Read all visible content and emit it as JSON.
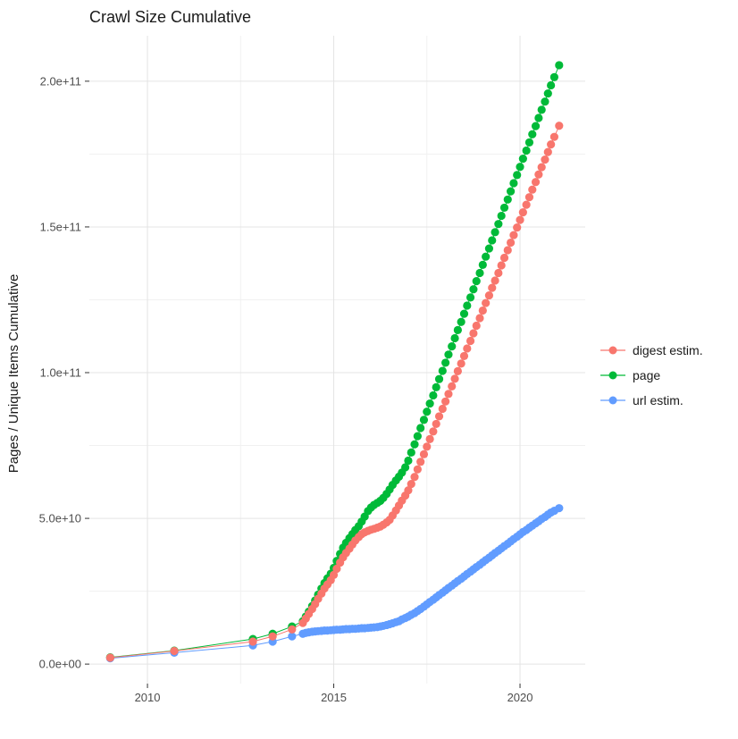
{
  "colors": {
    "digest": "#F8766D",
    "page": "#00BA38",
    "url": "#619CFF",
    "grid_major": "#e4e4e4",
    "grid_minor": "#f1f1f1",
    "axis_text": "#4d4d4d",
    "tick_mark": "#333333",
    "text": "#1a1a1a",
    "background": "#ffffff"
  },
  "legend": {
    "position": "right",
    "items": [
      {
        "label": "digest estim.",
        "color": "#F8766D"
      },
      {
        "label": "page",
        "color": "#00BA38"
      },
      {
        "label": "url estim.",
        "color": "#619CFF"
      }
    ]
  },
  "chart_data": {
    "type": "scatter",
    "title": "Crawl Size Cumulative",
    "xlabel": "",
    "ylabel": "Pages / Unique Items Cumulative",
    "values_unit": "1e9 items (billions)",
    "grid": true,
    "legend_position": "right",
    "xlim": [
      2008.44,
      2021.75
    ],
    "ylim_billions": [
      -6.7,
      215.6
    ],
    "x_tick_labels": [
      "2010",
      "2015",
      "2020"
    ],
    "x_tick_values": [
      2010,
      2015,
      2020
    ],
    "x_minor_ticks": [
      2012.5,
      2017.5
    ],
    "y_tick_labels": [
      "0.0e+00",
      "5.0e+10",
      "1.0e+11",
      "1.5e+11",
      "2.0e+11"
    ],
    "y_tick_values": [
      0,
      50,
      100,
      150,
      200
    ],
    "y_minor_ticks": [
      25,
      75,
      125,
      175
    ],
    "series": [
      {
        "name": "url estim.",
        "color": "#619CFF",
        "points": [
          [
            2009,
            2
          ],
          [
            2010.72,
            3.9
          ],
          [
            2012.83,
            6.4
          ],
          [
            2013.36,
            7.7
          ],
          [
            2013.88,
            9.5
          ],
          [
            2014.17,
            10.4
          ],
          [
            2014.25,
            10.7
          ],
          [
            2014.33,
            10.9
          ],
          [
            2014.42,
            11.1
          ],
          [
            2014.5,
            11.2
          ],
          [
            2014.58,
            11.3
          ],
          [
            2014.67,
            11.4
          ],
          [
            2014.75,
            11.5
          ],
          [
            2014.83,
            11.5
          ],
          [
            2014.92,
            11.6
          ],
          [
            2015,
            11.7
          ],
          [
            2015.08,
            11.8
          ],
          [
            2015.17,
            11.8
          ],
          [
            2015.25,
            11.9
          ],
          [
            2015.33,
            12
          ],
          [
            2015.42,
            12
          ],
          [
            2015.5,
            12.1
          ],
          [
            2015.58,
            12.1
          ],
          [
            2015.67,
            12.2
          ],
          [
            2015.75,
            12.3
          ],
          [
            2015.83,
            12.3
          ],
          [
            2015.92,
            12.4
          ],
          [
            2016,
            12.5
          ],
          [
            2016.08,
            12.6
          ],
          [
            2016.17,
            12.7
          ],
          [
            2016.25,
            12.9
          ],
          [
            2016.33,
            13.1
          ],
          [
            2016.42,
            13.4
          ],
          [
            2016.5,
            13.7
          ],
          [
            2016.58,
            14
          ],
          [
            2016.67,
            14.4
          ],
          [
            2016.75,
            14.7
          ],
          [
            2016.83,
            15.3
          ],
          [
            2016.92,
            15.8
          ],
          [
            2017,
            16.3
          ],
          [
            2017.08,
            16.9
          ],
          [
            2017.17,
            17.5
          ],
          [
            2017.25,
            18.2
          ],
          [
            2017.33,
            18.9
          ],
          [
            2017.42,
            19.7
          ],
          [
            2017.5,
            20.5
          ],
          [
            2017.58,
            21.3
          ],
          [
            2017.67,
            22.1
          ],
          [
            2017.75,
            22.9
          ],
          [
            2017.83,
            23.7
          ],
          [
            2017.92,
            24.5
          ],
          [
            2018,
            25.3
          ],
          [
            2018.08,
            26.1
          ],
          [
            2018.17,
            26.9
          ],
          [
            2018.25,
            27.7
          ],
          [
            2018.33,
            28.5
          ],
          [
            2018.42,
            29.3
          ],
          [
            2018.5,
            30.1
          ],
          [
            2018.58,
            30.9
          ],
          [
            2018.67,
            31.7
          ],
          [
            2018.75,
            32.5
          ],
          [
            2018.83,
            33.3
          ],
          [
            2018.92,
            34.1
          ],
          [
            2019,
            34.9
          ],
          [
            2019.08,
            35.7
          ],
          [
            2019.17,
            36.5
          ],
          [
            2019.25,
            37.3
          ],
          [
            2019.33,
            38.1
          ],
          [
            2019.42,
            38.9
          ],
          [
            2019.5,
            39.7
          ],
          [
            2019.58,
            40.5
          ],
          [
            2019.67,
            41.3
          ],
          [
            2019.75,
            42.1
          ],
          [
            2019.83,
            42.9
          ],
          [
            2019.92,
            43.7
          ],
          [
            2020,
            44.5
          ],
          [
            2020.08,
            45.3
          ],
          [
            2020.17,
            46
          ],
          [
            2020.25,
            46.8
          ],
          [
            2020.33,
            47.5
          ],
          [
            2020.42,
            48.3
          ],
          [
            2020.5,
            49
          ],
          [
            2020.58,
            49.8
          ],
          [
            2020.67,
            50.5
          ],
          [
            2020.75,
            51.3
          ],
          [
            2020.83,
            52
          ],
          [
            2020.92,
            52.6
          ],
          [
            2021.05,
            53.5
          ]
        ]
      },
      {
        "name": "page",
        "color": "#00BA38",
        "points": [
          [
            2009,
            2.3
          ],
          [
            2010.72,
            4.6
          ],
          [
            2012.83,
            8.6
          ],
          [
            2013.36,
            10.4
          ],
          [
            2013.88,
            12.9
          ],
          [
            2014.17,
            14.7
          ],
          [
            2014.25,
            16.3
          ],
          [
            2014.33,
            18
          ],
          [
            2014.42,
            19.9
          ],
          [
            2014.5,
            21.8
          ],
          [
            2014.58,
            23.8
          ],
          [
            2014.67,
            25.9
          ],
          [
            2014.75,
            27.8
          ],
          [
            2014.83,
            29.4
          ],
          [
            2014.92,
            31
          ],
          [
            2015,
            33
          ],
          [
            2015.08,
            35.4
          ],
          [
            2015.17,
            37.8
          ],
          [
            2015.25,
            39.9
          ],
          [
            2015.33,
            41.6
          ],
          [
            2015.42,
            43.2
          ],
          [
            2015.5,
            44.6
          ],
          [
            2015.58,
            46
          ],
          [
            2015.67,
            47.3
          ],
          [
            2015.75,
            48.9
          ],
          [
            2015.83,
            50.6
          ],
          [
            2015.92,
            52.5
          ],
          [
            2016,
            53.7
          ],
          [
            2016.08,
            54.6
          ],
          [
            2016.17,
            55.3
          ],
          [
            2016.25,
            56
          ],
          [
            2016.33,
            57
          ],
          [
            2016.42,
            58.4
          ],
          [
            2016.5,
            59.9
          ],
          [
            2016.58,
            61.5
          ],
          [
            2016.67,
            63
          ],
          [
            2016.75,
            64.3
          ],
          [
            2016.83,
            65.7
          ],
          [
            2016.92,
            67.5
          ],
          [
            2017,
            69.8
          ],
          [
            2017.08,
            72.6
          ],
          [
            2017.17,
            75.4
          ],
          [
            2017.25,
            78.2
          ],
          [
            2017.33,
            81
          ],
          [
            2017.42,
            83.8
          ],
          [
            2017.5,
            86.6
          ],
          [
            2017.58,
            89.4
          ],
          [
            2017.67,
            92.2
          ],
          [
            2017.75,
            95
          ],
          [
            2017.83,
            97.8
          ],
          [
            2017.92,
            100.6
          ],
          [
            2018,
            103.4
          ],
          [
            2018.08,
            106.2
          ],
          [
            2018.17,
            109
          ],
          [
            2018.25,
            111.8
          ],
          [
            2018.33,
            114.6
          ],
          [
            2018.42,
            117.4
          ],
          [
            2018.5,
            120.2
          ],
          [
            2018.58,
            123
          ],
          [
            2018.67,
            125.8
          ],
          [
            2018.75,
            128.6
          ],
          [
            2018.83,
            131.4
          ],
          [
            2018.92,
            134.2
          ],
          [
            2019,
            137
          ],
          [
            2019.08,
            139.8
          ],
          [
            2019.17,
            142.6
          ],
          [
            2019.25,
            145.4
          ],
          [
            2019.33,
            148.2
          ],
          [
            2019.42,
            151
          ],
          [
            2019.5,
            153.8
          ],
          [
            2019.58,
            156.6
          ],
          [
            2019.67,
            159.4
          ],
          [
            2019.75,
            162.2
          ],
          [
            2019.83,
            165
          ],
          [
            2019.92,
            167.8
          ],
          [
            2020,
            170.6
          ],
          [
            2020.08,
            173.4
          ],
          [
            2020.17,
            176.2
          ],
          [
            2020.25,
            179
          ],
          [
            2020.33,
            181.8
          ],
          [
            2020.42,
            184.6
          ],
          [
            2020.5,
            187.4
          ],
          [
            2020.58,
            190.2
          ],
          [
            2020.67,
            193
          ],
          [
            2020.75,
            195.8
          ],
          [
            2020.83,
            198.6
          ],
          [
            2020.92,
            201.4
          ],
          [
            2021.05,
            205.5
          ]
        ]
      },
      {
        "name": "digest estim.",
        "color": "#F8766D",
        "points": [
          [
            2009,
            2.2
          ],
          [
            2010.72,
            4.5
          ],
          [
            2012.83,
            7.7
          ],
          [
            2013.36,
            9.5
          ],
          [
            2013.88,
            11.9
          ],
          [
            2014.17,
            14.1
          ],
          [
            2014.25,
            15.6
          ],
          [
            2014.33,
            17.2
          ],
          [
            2014.42,
            18.9
          ],
          [
            2014.5,
            20.6
          ],
          [
            2014.58,
            22.4
          ],
          [
            2014.67,
            24.2
          ],
          [
            2014.75,
            25.9
          ],
          [
            2014.83,
            27.3
          ],
          [
            2014.92,
            28.8
          ],
          [
            2015,
            30.6
          ],
          [
            2015.08,
            32.7
          ],
          [
            2015.17,
            34.8
          ],
          [
            2015.25,
            36.6
          ],
          [
            2015.33,
            38.1
          ],
          [
            2015.42,
            39.6
          ],
          [
            2015.5,
            41
          ],
          [
            2015.58,
            42.4
          ],
          [
            2015.67,
            43.6
          ],
          [
            2015.75,
            44.6
          ],
          [
            2015.83,
            45.2
          ],
          [
            2015.92,
            45.7
          ],
          [
            2016,
            46.1
          ],
          [
            2016.08,
            46.4
          ],
          [
            2016.17,
            46.8
          ],
          [
            2016.25,
            47.2
          ],
          [
            2016.33,
            47.8
          ],
          [
            2016.42,
            48.6
          ],
          [
            2016.5,
            49.5
          ],
          [
            2016.58,
            51
          ],
          [
            2016.67,
            52.7
          ],
          [
            2016.75,
            54.4
          ],
          [
            2016.83,
            56.1
          ],
          [
            2016.92,
            57.8
          ],
          [
            2017,
            59.6
          ],
          [
            2017.08,
            61.8
          ],
          [
            2017.17,
            64.2
          ],
          [
            2017.25,
            66.8
          ],
          [
            2017.33,
            69.4
          ],
          [
            2017.42,
            72
          ],
          [
            2017.5,
            74.6
          ],
          [
            2017.58,
            77.2
          ],
          [
            2017.67,
            79.8
          ],
          [
            2017.75,
            82.4
          ],
          [
            2017.83,
            85
          ],
          [
            2017.92,
            87.6
          ],
          [
            2018,
            90.1
          ],
          [
            2018.08,
            92.7
          ],
          [
            2018.17,
            95.3
          ],
          [
            2018.25,
            97.9
          ],
          [
            2018.33,
            100.5
          ],
          [
            2018.42,
            103.1
          ],
          [
            2018.5,
            105.7
          ],
          [
            2018.58,
            108.3
          ],
          [
            2018.67,
            110.9
          ],
          [
            2018.75,
            113.5
          ],
          [
            2018.83,
            116.1
          ],
          [
            2018.92,
            118.7
          ],
          [
            2019,
            121.3
          ],
          [
            2019.08,
            123.9
          ],
          [
            2019.17,
            126.5
          ],
          [
            2019.25,
            129.1
          ],
          [
            2019.33,
            131.6
          ],
          [
            2019.42,
            134.2
          ],
          [
            2019.5,
            136.8
          ],
          [
            2019.58,
            139.4
          ],
          [
            2019.67,
            142
          ],
          [
            2019.75,
            144.6
          ],
          [
            2019.83,
            147.2
          ],
          [
            2019.92,
            149.8
          ],
          [
            2020,
            152.4
          ],
          [
            2020.08,
            155
          ],
          [
            2020.17,
            157.6
          ],
          [
            2020.25,
            160.2
          ],
          [
            2020.33,
            162.8
          ],
          [
            2020.42,
            165.4
          ],
          [
            2020.5,
            168
          ],
          [
            2020.58,
            170.5
          ],
          [
            2020.67,
            173.1
          ],
          [
            2020.75,
            175.7
          ],
          [
            2020.83,
            178.3
          ],
          [
            2020.92,
            180.9
          ],
          [
            2021.05,
            184.7
          ]
        ]
      }
    ]
  }
}
